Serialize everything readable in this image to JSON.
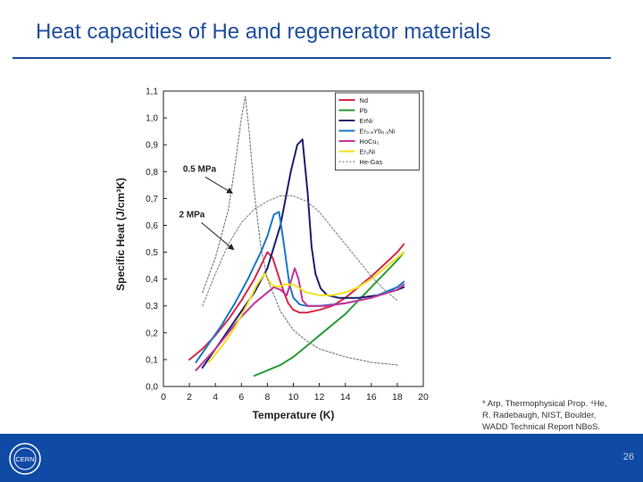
{
  "slide": {
    "title": "Heat capacities of He and regenerator materials",
    "footnote_lines": [
      "* Arp, Thermophysical Prop. ⁴He,",
      "R. Radebaugh, NIST, Boulder,",
      "WADD Technical Report NBoS."
    ],
    "page_number": "26",
    "logo_text": "CERN",
    "colors": {
      "title": "#1f4e9c",
      "footer": "#0f4aa5"
    }
  },
  "chart_data": {
    "type": "line",
    "xlabel": "Temperature (K)",
    "ylabel": "Specific Heat (J/cm³K)",
    "xlim": [
      0,
      20
    ],
    "ylim": [
      0,
      1.1
    ],
    "xticks": [
      "0",
      "2",
      "4",
      "6",
      "8",
      "10",
      "12",
      "14",
      "16",
      "18",
      "20"
    ],
    "yticks": [
      "0,0",
      "0,1",
      "0,2",
      "0,3",
      "0,4",
      "0,5",
      "0,6",
      "0,7",
      "0,8",
      "0,9",
      "1,0",
      "1,1"
    ],
    "legend_position": "top-right",
    "annotations": [
      {
        "text": "0.5 MPa",
        "x": 1.5,
        "y": 0.8,
        "arrow_to": [
          5.3,
          0.72
        ]
      },
      {
        "text": "2 MPa",
        "x": 1.2,
        "y": 0.63,
        "arrow_to": [
          5.4,
          0.51
        ]
      }
    ],
    "series": [
      {
        "name": "Nd",
        "color": "#d42a48",
        "x": [
          2,
          3,
          4,
          5,
          6,
          7,
          7.5,
          8,
          8.4,
          8.8,
          9.2,
          9.6,
          10,
          10.5,
          11,
          12,
          13,
          14,
          15,
          16,
          17,
          18,
          18.5
        ],
        "y": [
          0.1,
          0.14,
          0.19,
          0.25,
          0.32,
          0.4,
          0.45,
          0.5,
          0.48,
          0.42,
          0.36,
          0.31,
          0.285,
          0.275,
          0.275,
          0.285,
          0.3,
          0.33,
          0.37,
          0.41,
          0.455,
          0.5,
          0.53
        ]
      },
      {
        "name": "Pb",
        "color": "#2a9a3a",
        "x": [
          7,
          8,
          9,
          10,
          11,
          12,
          13,
          14,
          15,
          16,
          17,
          18,
          18.5
        ],
        "y": [
          0.04,
          0.06,
          0.08,
          0.11,
          0.15,
          0.19,
          0.23,
          0.27,
          0.32,
          0.37,
          0.42,
          0.47,
          0.5
        ]
      },
      {
        "name": "ErNi",
        "color": "#1c1f6e",
        "x": [
          3,
          4,
          5,
          6,
          7,
          8,
          9,
          9.8,
          10.3,
          10.7,
          11.1,
          11.4,
          11.7,
          12.1,
          12.6,
          13.5,
          15,
          16.5,
          18,
          18.5
        ],
        "y": [
          0.07,
          0.14,
          0.21,
          0.28,
          0.35,
          0.44,
          0.6,
          0.8,
          0.9,
          0.92,
          0.72,
          0.52,
          0.42,
          0.365,
          0.34,
          0.33,
          0.33,
          0.34,
          0.36,
          0.37
        ]
      },
      {
        "name": "Er₀.₉Yb₀.₁Ni",
        "color": "#1b78c4",
        "x": [
          2.5,
          3.5,
          4.5,
          5.5,
          6.5,
          7.5,
          8,
          8.5,
          8.9,
          9.3,
          9.7,
          10,
          10.5,
          11,
          12,
          14,
          16,
          18,
          18.5
        ],
        "y": [
          0.09,
          0.16,
          0.23,
          0.31,
          0.4,
          0.5,
          0.56,
          0.64,
          0.65,
          0.52,
          0.38,
          0.33,
          0.305,
          0.3,
          0.3,
          0.31,
          0.33,
          0.37,
          0.39
        ]
      },
      {
        "name": "HoCu₂",
        "color": "#c2359a",
        "x": [
          2.5,
          4,
          5,
          6,
          7,
          8,
          8.5,
          9,
          9.5,
          9.8,
          10.1,
          10.4,
          10.7,
          11.1,
          11.6,
          12.5,
          14,
          16,
          18,
          18.5
        ],
        "y": [
          0.06,
          0.14,
          0.2,
          0.26,
          0.31,
          0.35,
          0.37,
          0.36,
          0.34,
          0.39,
          0.44,
          0.4,
          0.32,
          0.3,
          0.3,
          0.3,
          0.31,
          0.33,
          0.36,
          0.38
        ]
      },
      {
        "name": "Er₃Ni",
        "color": "#f2e21e",
        "x": [
          3.5,
          4.5,
          5.5,
          6.5,
          7.2,
          7.8,
          8.3,
          8.8,
          9.3,
          10,
          11,
          12,
          13,
          14,
          15,
          16,
          17,
          18,
          18.5
        ],
        "y": [
          0.09,
          0.15,
          0.22,
          0.31,
          0.38,
          0.42,
          0.38,
          0.37,
          0.38,
          0.38,
          0.35,
          0.34,
          0.34,
          0.35,
          0.37,
          0.4,
          0.44,
          0.48,
          0.5
        ]
      },
      {
        "name": "He-Gas",
        "color": "#777777",
        "dashed": true,
        "x": [
          3,
          4,
          5,
          5.5,
          6,
          6.3,
          6.6,
          7,
          7.5,
          8,
          9,
          10,
          11,
          12,
          14,
          16,
          18
        ],
        "y": [
          0.35,
          0.48,
          0.66,
          0.82,
          1.0,
          1.08,
          0.95,
          0.72,
          0.52,
          0.4,
          0.28,
          0.21,
          0.17,
          0.14,
          0.11,
          0.09,
          0.08
        ]
      },
      {
        "name": "",
        "color": "#888888",
        "dashed": true,
        "x": [
          3,
          4,
          5,
          6,
          7,
          8,
          9,
          10,
          11,
          12,
          13,
          14,
          15,
          16,
          17,
          18
        ],
        "y": [
          0.3,
          0.42,
          0.53,
          0.61,
          0.66,
          0.69,
          0.71,
          0.71,
          0.69,
          0.65,
          0.59,
          0.53,
          0.47,
          0.41,
          0.36,
          0.32
        ]
      }
    ]
  }
}
